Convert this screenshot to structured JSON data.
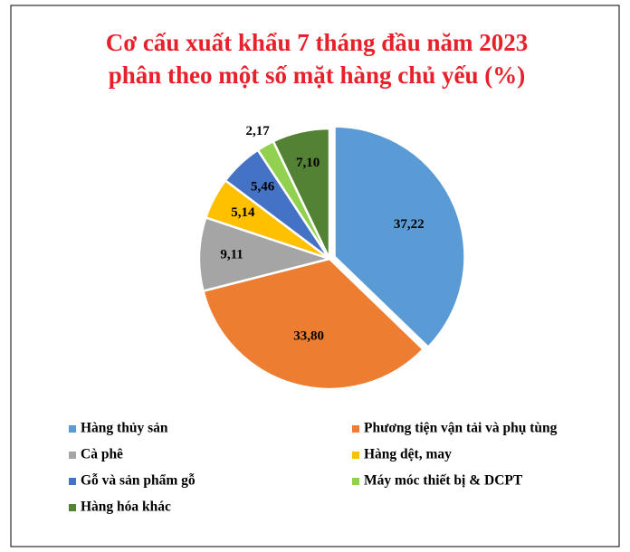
{
  "chart_data": {
    "type": "pie",
    "title": [
      "Cơ cấu xuất khẩu 7 tháng đầu năm 2023",
      "phân theo một số mặt hàng chủ yếu (%)"
    ],
    "categories": [
      "Hàng thủy sản",
      "Phương tiện vận tải và phụ tùng",
      "Cà phê",
      "Hàng dệt, may",
      "Gỗ và sản phẩm gỗ",
      "Máy móc thiết bị & DCPT",
      "Hàng hóa khác"
    ],
    "values": [
      37.22,
      33.8,
      9.11,
      5.14,
      5.46,
      2.17,
      7.1
    ],
    "value_labels": [
      "37,22",
      "33,80",
      "9,11",
      "5,14",
      "5,46",
      "2,17",
      "7,10"
    ],
    "colors": [
      "#5b9bd5",
      "#ed7d31",
      "#a5a5a5",
      "#ffc000",
      "#4472c4",
      "#92d050",
      "#548235"
    ],
    "legend": "bottom"
  }
}
